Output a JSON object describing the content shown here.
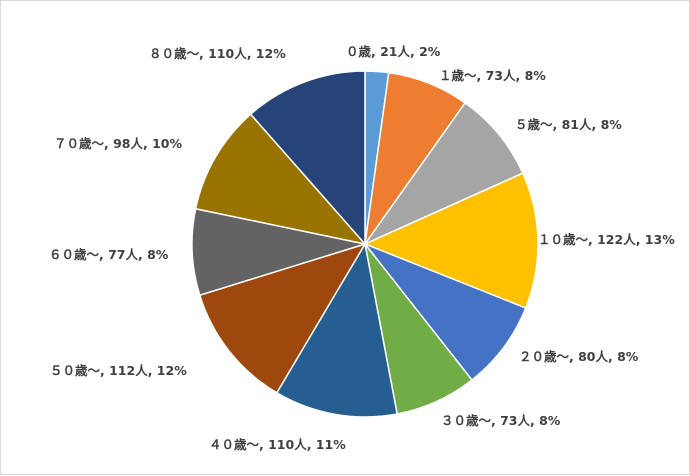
{
  "chart_data": {
    "type": "pie",
    "start": "top",
    "direction": "clockwise",
    "slices": [
      {
        "name": "０歳",
        "value": 21,
        "percent": "2%",
        "label": "０歳, 21人, 2%",
        "color": "#5B9BD5"
      },
      {
        "name": "１歳～",
        "value": 73,
        "percent": "8%",
        "label": "１歳～, 73人, 8%",
        "color": "#ED7D31"
      },
      {
        "name": "５歳～",
        "value": 81,
        "percent": "8%",
        "label": "５歳～, 81人, 8%",
        "color": "#A5A5A5"
      },
      {
        "name": "１０歳～",
        "value": 122,
        "percent": "13%",
        "label": "１０歳～, 122人, 13%",
        "color": "#FFC000"
      },
      {
        "name": "２０歳～",
        "value": 80,
        "percent": "8%",
        "label": "２０歳～, 80人, 8%",
        "color": "#4472C4"
      },
      {
        "name": "３０歳～",
        "value": 73,
        "percent": "8%",
        "label": "３０歳～, 73人, 8%",
        "color": "#70AD47"
      },
      {
        "name": "４０歳～",
        "value": 110,
        "percent": "11%",
        "label": "４０歳～, 110人, 11%",
        "color": "#255E91"
      },
      {
        "name": "５０歳～",
        "value": 112,
        "percent": "12%",
        "label": "５０歳～, 112人, 12%",
        "color": "#9E480E"
      },
      {
        "name": "６０歳～",
        "value": 77,
        "percent": "8%",
        "label": "６０歳～, 77人, 8%",
        "color": "#636363"
      },
      {
        "name": "７０歳～",
        "value": 98,
        "percent": "10%",
        "label": "７０歳～, 98人, 10%",
        "color": "#997300"
      },
      {
        "name": "８０歳～",
        "value": 110,
        "percent": "12%",
        "label": "８０歳～, 110人, 12%",
        "color": "#264478"
      }
    ]
  }
}
